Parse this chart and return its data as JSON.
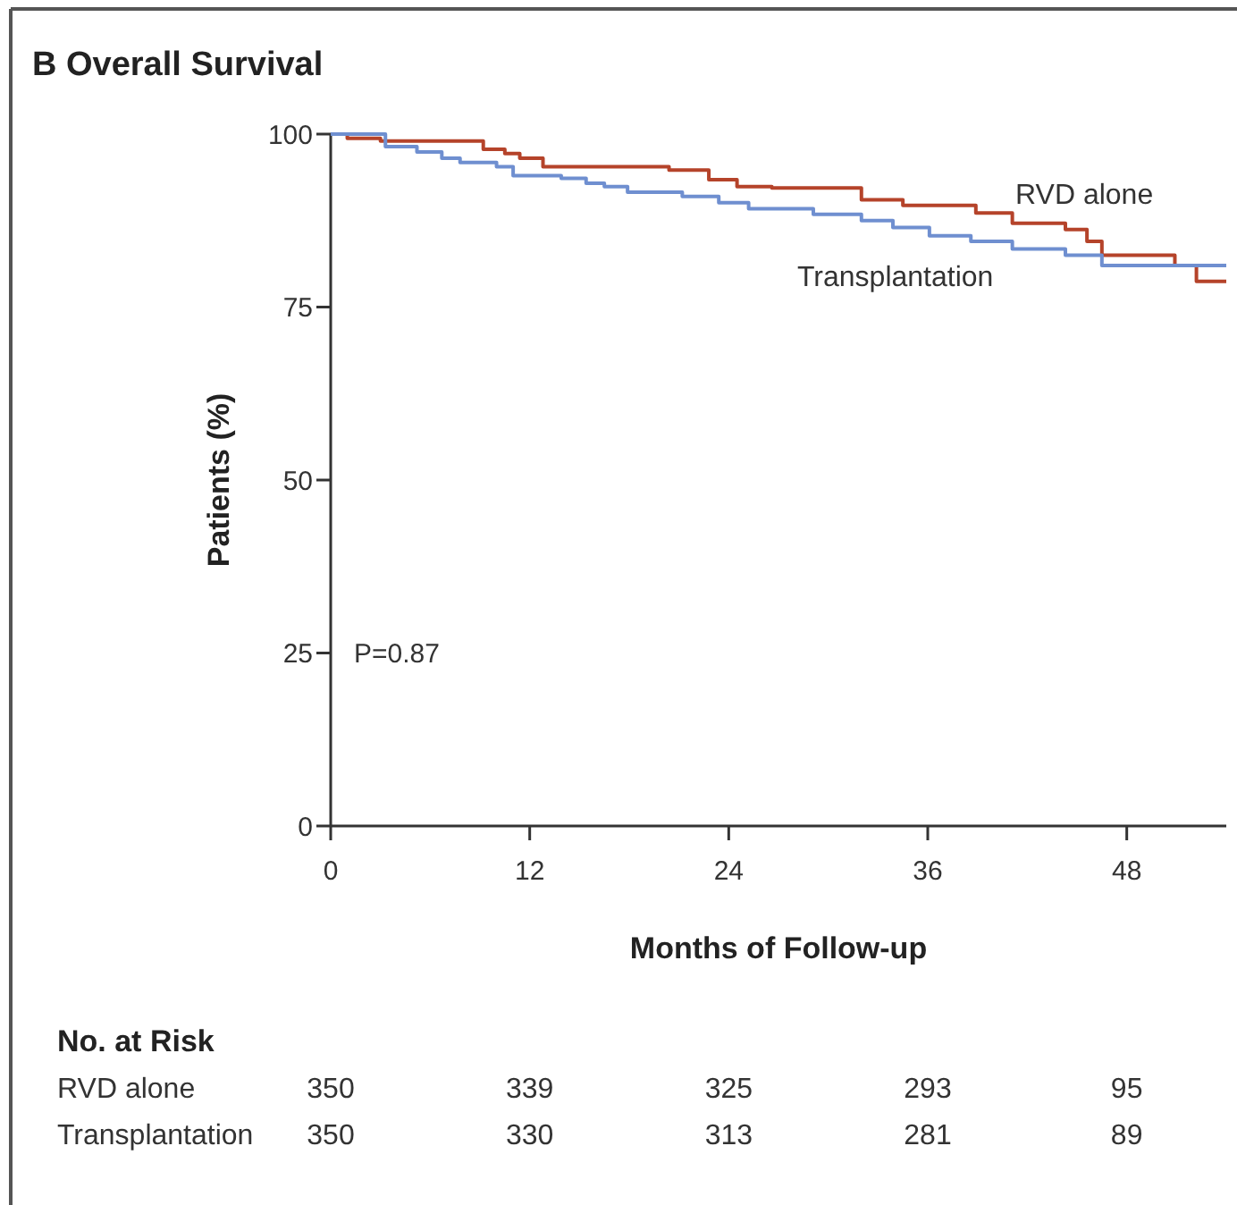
{
  "chart_data": {
    "type": "step",
    "title": "B Overall Survival",
    "xlabel": "Months of Follow-up",
    "ylabel": "Patients (%)",
    "xlim": [
      0,
      54
    ],
    "ylim": [
      0,
      100
    ],
    "xticks": [
      0,
      12,
      24,
      36,
      48
    ],
    "yticks": [
      0,
      25,
      50,
      75,
      100
    ],
    "grid": false,
    "marker": "none",
    "line_style": "solid",
    "series": [
      {
        "name": "RVD alone",
        "color": "#b5432a",
        "x": [
          0,
          1,
          3,
          9.2,
          10.5,
          11.4,
          12.8,
          15.2,
          20.4,
          22.8,
          24.5,
          26.6,
          32,
          34.5,
          38.9,
          41.1,
          44.3,
          45.6,
          46.5,
          50.9,
          52.2,
          54
        ],
        "values": [
          100,
          99.4,
          99,
          97.8,
          97.2,
          96.5,
          95.3,
          95.3,
          94.8,
          93.4,
          92.4,
          92.2,
          90.5,
          89.7,
          88.6,
          87.1,
          86.2,
          84.5,
          82.5,
          81,
          78.7,
          78.7
        ]
      },
      {
        "name": "Transplantation",
        "color": "#6f8fd0",
        "x": [
          0,
          3.3,
          5.2,
          6.7,
          7.8,
          10,
          11,
          13.9,
          15.4,
          16.5,
          17.9,
          21.2,
          23.4,
          25.2,
          29.1,
          32,
          33.9,
          36.1,
          38.6,
          41.1,
          44.3,
          46.5,
          54
        ],
        "values": [
          100,
          98.2,
          97.4,
          96.5,
          95.9,
          95.3,
          94,
          93.6,
          92.9,
          92.4,
          91.6,
          91,
          90.1,
          89.2,
          88.4,
          87.5,
          86.5,
          85.3,
          84.5,
          83.4,
          82.5,
          81,
          81
        ]
      }
    ],
    "annotations": [
      "P=0.87",
      "No. at Risk",
      "RVD alone",
      "Transplantation",
      "350",
      "339",
      "325",
      "293",
      "95",
      "350",
      "330",
      "313",
      "281",
      "89"
    ]
  }
}
